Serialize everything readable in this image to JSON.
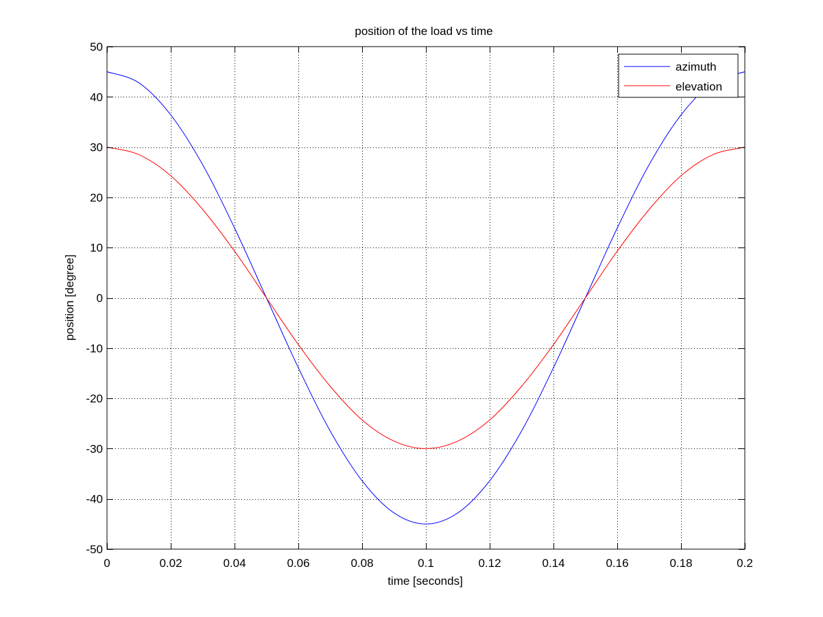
{
  "chart_data": {
    "type": "line",
    "title": "position of the load vs time",
    "xlabel": "time [seconds]",
    "ylabel": "position [degree]",
    "xlim": [
      0,
      0.2
    ],
    "ylim": [
      -50,
      50
    ],
    "xticks": [
      0,
      0.02,
      0.04,
      0.06,
      0.08,
      0.1,
      0.12,
      0.14,
      0.16,
      0.18,
      0.2
    ],
    "yticks": [
      -50,
      -40,
      -30,
      -20,
      -10,
      0,
      10,
      20,
      30,
      40,
      50
    ],
    "xtick_labels": [
      "0",
      "0.02",
      "0.04",
      "0.06",
      "0.08",
      "0.1",
      "0.12",
      "0.14",
      "0.16",
      "0.18",
      "0.2"
    ],
    "ytick_labels": [
      "-50",
      "-40",
      "-30",
      "-20",
      "-10",
      "0",
      "10",
      "20",
      "30",
      "40",
      "50"
    ],
    "grid": true,
    "legend_position": "top-right",
    "x": [
      0,
      0.01,
      0.02,
      0.03,
      0.04,
      0.05,
      0.06,
      0.07,
      0.08,
      0.09,
      0.1,
      0.11,
      0.12,
      0.13,
      0.14,
      0.15,
      0.16,
      0.17,
      0.18,
      0.19,
      0.2
    ],
    "series": [
      {
        "name": "azimuth",
        "color": "#0000ff",
        "values": [
          45,
          42.8,
          36.4,
          26.5,
          13.9,
          0,
          -13.9,
          -26.5,
          -36.4,
          -42.8,
          -45,
          -42.8,
          -36.4,
          -26.5,
          -13.9,
          0,
          13.9,
          26.5,
          36.4,
          42.8,
          45
        ]
      },
      {
        "name": "elevation",
        "color": "#ff0000",
        "values": [
          30,
          28.5,
          24.3,
          17.6,
          9.3,
          0,
          -9.3,
          -17.6,
          -24.3,
          -28.5,
          -30,
          -28.5,
          -24.3,
          -17.6,
          -9.3,
          0,
          9.3,
          17.6,
          24.3,
          28.5,
          30
        ]
      }
    ]
  }
}
